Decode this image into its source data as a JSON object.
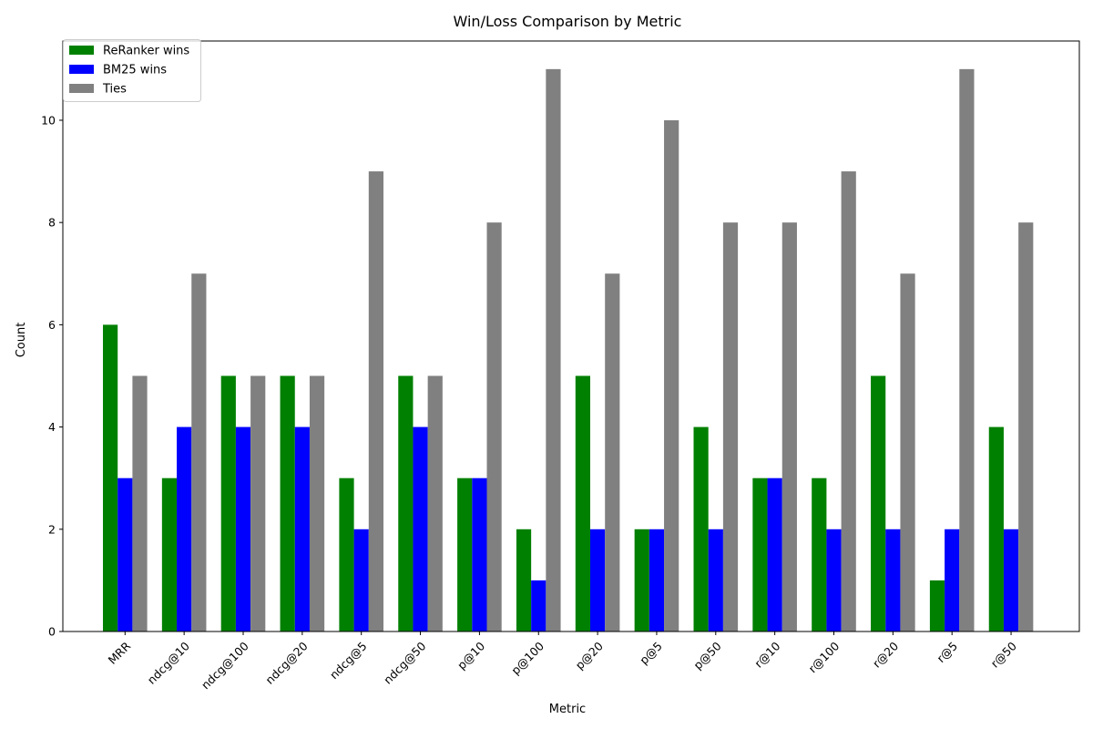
{
  "chart_data": {
    "type": "bar",
    "title": "Win/Loss Comparison by Metric",
    "xlabel": "Metric",
    "ylabel": "Count",
    "ylim": [
      0,
      11.55
    ],
    "yticks": [
      0,
      2,
      4,
      6,
      8,
      10
    ],
    "categories": [
      "MRR",
      "ndcg@10",
      "ndcg@100",
      "ndcg@20",
      "ndcg@5",
      "ndcg@50",
      "p@10",
      "p@100",
      "p@20",
      "p@5",
      "p@50",
      "r@10",
      "r@100",
      "r@20",
      "r@5",
      "r@50"
    ],
    "series": [
      {
        "name": "ReRanker wins",
        "color": "#008000",
        "values": [
          6,
          3,
          5,
          5,
          3,
          5,
          3,
          2,
          5,
          2,
          4,
          3,
          3,
          5,
          1,
          4
        ]
      },
      {
        "name": "BM25 wins",
        "color": "#0000ff",
        "values": [
          3,
          4,
          4,
          4,
          2,
          4,
          3,
          1,
          2,
          2,
          2,
          3,
          2,
          2,
          2,
          2
        ]
      },
      {
        "name": "Ties",
        "color": "#808080",
        "values": [
          5,
          7,
          5,
          5,
          9,
          5,
          8,
          11,
          7,
          10,
          8,
          8,
          9,
          7,
          11,
          8
        ]
      }
    ],
    "legend_position": "top-left",
    "grid": false
  }
}
